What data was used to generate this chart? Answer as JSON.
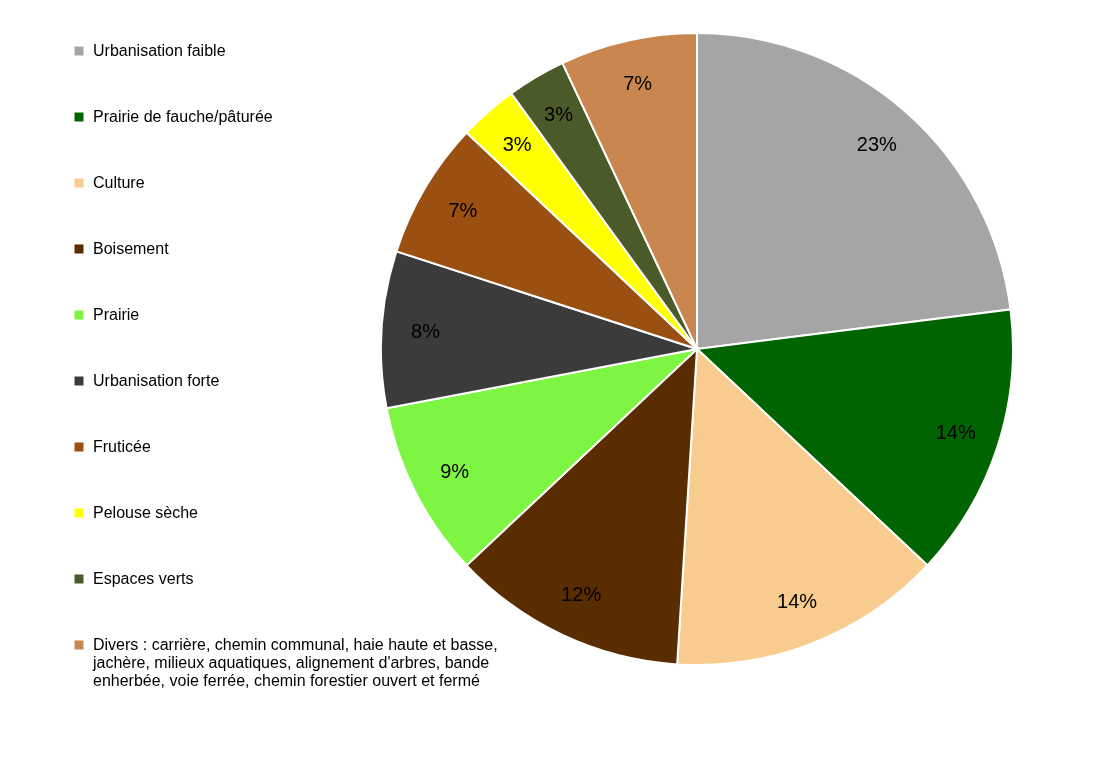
{
  "chart_data": {
    "type": "pie",
    "legend": "left",
    "categories": [
      "Urbanisation faible",
      "Prairie de fauche/pâturée",
      "Culture",
      "Boisement",
      "Prairie",
      "Urbanisation forte",
      "Fruticée",
      "Pelouse sèche",
      "Espaces verts",
      "Divers : carrière, chemin communal, haie haute et basse, jachère, milieux aquatiques, alignement d'arbres, bande enherbée, voie ferrée, chemin forestier ouvert et fermé"
    ],
    "values": [
      23,
      14,
      14,
      12,
      9,
      8,
      7,
      3,
      3,
      7
    ],
    "value_labels": [
      "23%",
      "14%",
      "14%",
      "12%",
      "9%",
      "8%",
      "7%",
      "3%",
      "3%",
      "7%"
    ],
    "colors": [
      "#a5a5a5",
      "#006400",
      "#f8cb8e",
      "#5a2d00",
      "#7ef542",
      "#3b3b3b",
      "#9a5010",
      "#ffff00",
      "#4a5a28",
      "#c9874f"
    ]
  }
}
